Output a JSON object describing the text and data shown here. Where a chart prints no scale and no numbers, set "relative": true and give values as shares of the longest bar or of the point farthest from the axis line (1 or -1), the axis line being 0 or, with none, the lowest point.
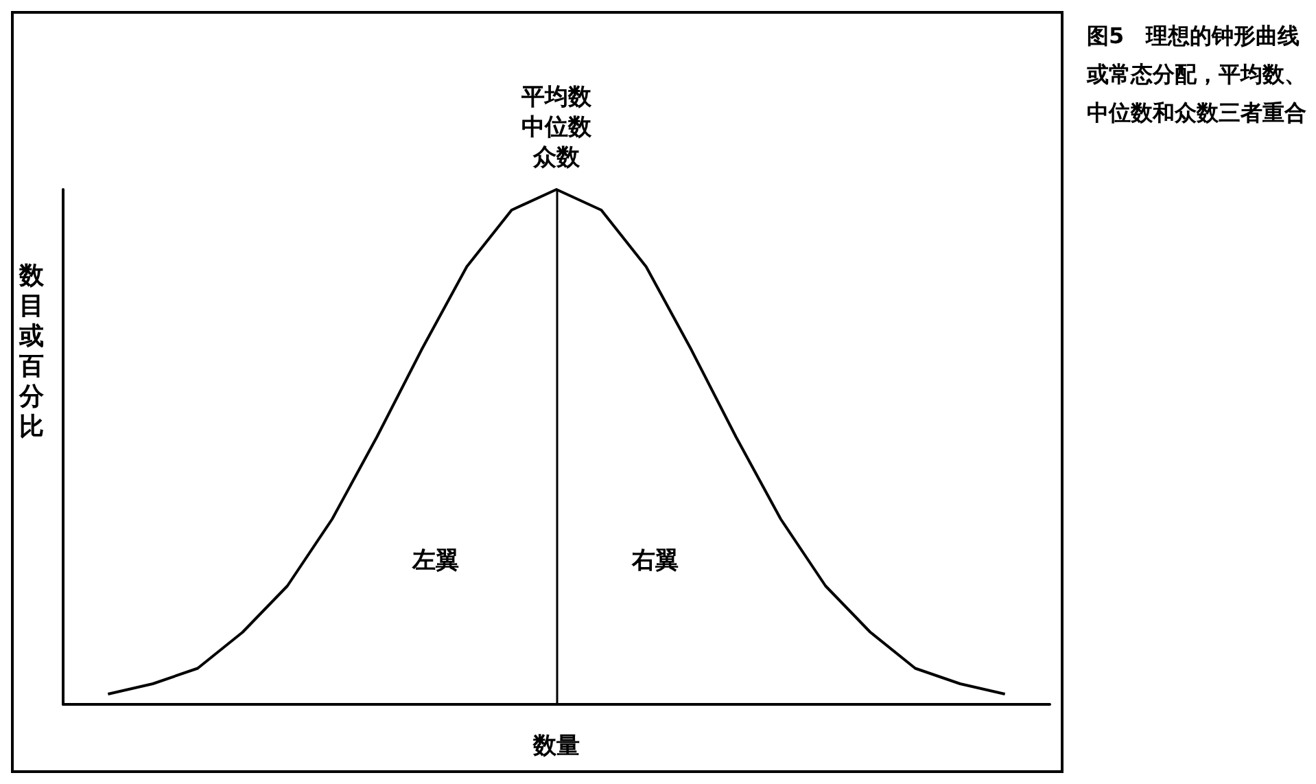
{
  "chart_data": {
    "type": "line",
    "relative": true,
    "xlabel": "数量",
    "ylabel": "数目或百分比",
    "categories": [
      null,
      null,
      null,
      null,
      null,
      null,
      null,
      null,
      null,
      null,
      null,
      null,
      null,
      null,
      null,
      null,
      null,
      null,
      null,
      null,
      null,
      null,
      null
    ],
    "series": [
      {
        "color": "#000000",
        "values": [
          null,
          0.02,
          0.04,
          0.07,
          0.14,
          0.23,
          0.36,
          0.52,
          0.69,
          0.85,
          0.96,
          1,
          0.96,
          0.85,
          0.69,
          0.52,
          0.36,
          0.23,
          0.14,
          0.07,
          0.04,
          0.02,
          null
        ]
      }
    ],
    "ref_lines": [
      {
        "axis": "x",
        "label": "平均数中位数众数",
        "color": "#000000"
      }
    ],
    "annotations": [
      "左翼",
      "右翼",
      "图5　理想的钟形曲线或常态分配，平均数、中位数和众数三者重合"
    ],
    "grid": false,
    "marker": "none"
  }
}
